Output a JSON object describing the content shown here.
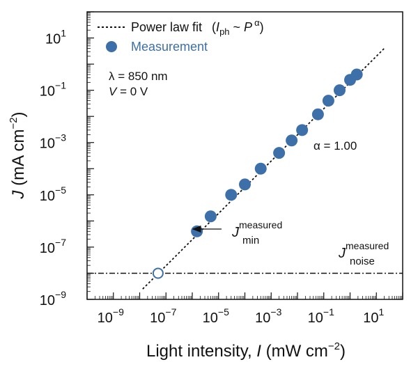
{
  "chart_data": {
    "type": "scatter",
    "xlabel": {
      "pre": "Light intensity, ",
      "var": "I",
      "post": " (mW cm",
      "sup": "−2",
      "close": ")"
    },
    "ylabel": {
      "var": "J",
      "post": " (mA cm",
      "sup": "−2",
      "close": ")"
    },
    "x_scale": "log",
    "y_scale": "log",
    "xlim": [
      1e-10,
      100.0
    ],
    "ylim": [
      1e-09,
      100.0
    ],
    "x_ticks": [
      {
        "base": "10",
        "exp": "−9",
        "value": 1e-09
      },
      {
        "base": "10",
        "exp": "−7",
        "value": 1e-07
      },
      {
        "base": "10",
        "exp": "−5",
        "value": 1e-05
      },
      {
        "base": "10",
        "exp": "−3",
        "value": 0.001
      },
      {
        "base": "10",
        "exp": "−1",
        "value": 0.1
      },
      {
        "base": "10",
        "exp": "1",
        "value": 10.0
      }
    ],
    "y_ticks": [
      {
        "base": "10",
        "exp": "−9",
        "value": 1e-09
      },
      {
        "base": "10",
        "exp": "−7",
        "value": 1e-07
      },
      {
        "base": "10",
        "exp": "−5",
        "value": 1e-05
      },
      {
        "base": "10",
        "exp": "−3",
        "value": 0.001
      },
      {
        "base": "10",
        "exp": "−1",
        "value": 0.1
      },
      {
        "base": "10",
        "exp": "1",
        "value": 10.0
      }
    ],
    "measurement": {
      "color": "#3d6fa8",
      "points": [
        {
          "x": 1.5e-06,
          "y": 4e-07
        },
        {
          "x": 5e-06,
          "y": 1.5e-06
        },
        {
          "x": 3e-05,
          "y": 1e-05
        },
        {
          "x": 0.0001,
          "y": 2.5e-05
        },
        {
          "x": 0.0004,
          "y": 0.0001
        },
        {
          "x": 0.002,
          "y": 0.0004
        },
        {
          "x": 0.006,
          "y": 0.0012
        },
        {
          "x": 0.015,
          "y": 0.003
        },
        {
          "x": 0.06,
          "y": 0.012
        },
        {
          "x": 0.15,
          "y": 0.04
        },
        {
          "x": 0.4,
          "y": 0.1
        },
        {
          "x": 1.0,
          "y": 0.25
        },
        {
          "x": 1.8,
          "y": 0.4
        }
      ]
    },
    "noise_point": {
      "x": 5e-08,
      "y": 1e-08
    },
    "fit_line": {
      "x": [
        1.3e-08,
        20.0
      ],
      "y": [
        2.5e-09,
        4.0
      ]
    },
    "noise_floor": {
      "y": 1e-08,
      "x_from": 1e-10,
      "x_to": 100.0
    },
    "legend": {
      "fit_label": "Power law fit",
      "fit_formula": {
        "open": "(",
        "var": "I",
        "sub": "ph",
        "mid": " ~ ",
        "var2": "P",
        "sup": "α",
        "close": ")"
      },
      "measurement_label": "Measurement",
      "measurement_label_color": "#3d6fa8"
    },
    "annotations": {
      "wavelength": {
        "sym": "λ",
        "text": " = 850 nm"
      },
      "voltage": {
        "var": "V",
        "text": " = 0 V"
      },
      "alpha": "α = 1.00",
      "jmin": {
        "var": "J",
        "sup": "measured",
        "sub": "min"
      },
      "jnoise": {
        "var": "J",
        "sup": "measured",
        "sub": "noise"
      }
    }
  }
}
